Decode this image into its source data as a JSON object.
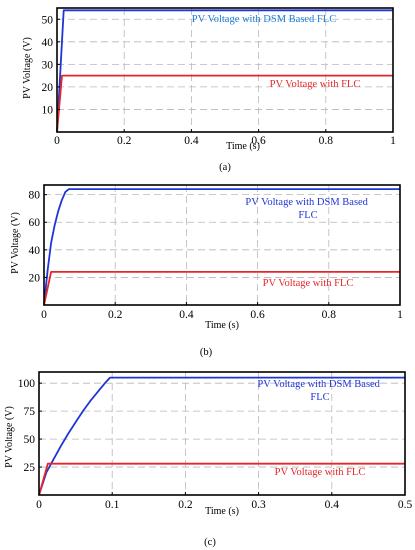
{
  "colors": {
    "dsm": "#1f35d6",
    "dsm_text": "#1a7fd6",
    "flc": "#e8262a",
    "grid": "#b8b8b8"
  },
  "chart_data": [
    {
      "type": "line",
      "caption": "(a)",
      "xlabel": "Time (s)",
      "ylabel": "PV Voltage (V)",
      "xlim": [
        0,
        1
      ],
      "ylim": [
        0,
        55
      ],
      "xticks": [
        0,
        0.2,
        0.4,
        0.6,
        0.8,
        1
      ],
      "xtick_labels": [
        "0",
        "0.2",
        "0.4",
        "0.6",
        "0.8",
        "1"
      ],
      "yticks": [
        10,
        20,
        30,
        40,
        50
      ],
      "ytick_labels": [
        "10",
        "20",
        "30",
        "40",
        "50"
      ],
      "grid": true,
      "series": [
        {
          "name": "PV Voltage with DSM Based FLC",
          "x": [
            0,
            0.02,
            1
          ],
          "y": [
            0,
            54,
            54
          ]
        },
        {
          "name": "PV Voltage with FLC",
          "x": [
            0,
            0.015,
            1
          ],
          "y": [
            0,
            25,
            25
          ]
        }
      ]
    },
    {
      "type": "line",
      "caption": "(b)",
      "xlabel": "Time (s)",
      "ylabel": "PV Voltage (V)",
      "xlim": [
        0,
        1
      ],
      "ylim": [
        0,
        87
      ],
      "xticks": [
        0,
        0.2,
        0.4,
        0.6,
        0.8,
        1
      ],
      "xtick_labels": [
        "0",
        "0.2",
        "0.4",
        "0.6",
        "0.8",
        "1"
      ],
      "yticks": [
        20,
        40,
        60,
        80
      ],
      "ytick_labels": [
        "20",
        "40",
        "60",
        "80"
      ],
      "grid": true,
      "series": [
        {
          "name": "PV Voltage with DSM Based FLC",
          "x": [
            0,
            0.01,
            0.02,
            0.03,
            0.04,
            0.05,
            0.06,
            0.07,
            1
          ],
          "y": [
            0,
            25,
            45,
            58,
            68,
            76,
            82,
            84,
            84
          ]
        },
        {
          "name": "PV Voltage with FLC",
          "x": [
            0,
            0.02,
            1
          ],
          "y": [
            0,
            24,
            24
          ]
        }
      ]
    },
    {
      "type": "line",
      "caption": "(c)",
      "xlabel": "Time (s)",
      "ylabel": "PV Voltage (V)",
      "xlim": [
        0,
        0.5
      ],
      "ylim": [
        0,
        110
      ],
      "xticks": [
        0,
        0.1,
        0.2,
        0.3,
        0.4,
        0.5
      ],
      "xtick_labels": [
        "0",
        "0.1",
        "0.2",
        "0.3",
        "0.4",
        "0.5"
      ],
      "yticks": [
        25,
        50,
        75,
        100
      ],
      "ytick_labels": [
        "25",
        "50",
        "75",
        "100"
      ],
      "grid": true,
      "series": [
        {
          "name": "PV Voltage with DSM Based FLC",
          "x": [
            0,
            0.01,
            0.02,
            0.03,
            0.04,
            0.05,
            0.06,
            0.07,
            0.08,
            0.09,
            0.097,
            0.5
          ],
          "y": [
            0,
            20,
            32,
            44,
            55,
            65,
            75,
            84,
            92,
            100,
            105,
            105
          ]
        },
        {
          "name": "PV Voltage with FLC",
          "x": [
            0,
            0.012,
            0.5
          ],
          "y": [
            0,
            28,
            28
          ]
        }
      ]
    }
  ]
}
